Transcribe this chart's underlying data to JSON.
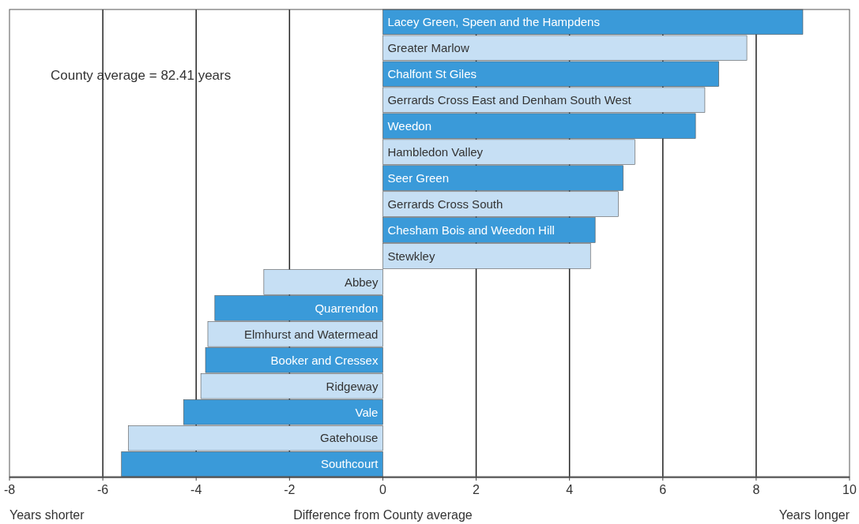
{
  "chart_data": {
    "type": "bar",
    "orientation": "horizontal",
    "xlabel": "Difference from County average",
    "categories": [
      "Lacey Green, Speen and the Hampdens",
      "Greater Marlow",
      "Chalfont St Giles",
      "Gerrards Cross East and Denham South West",
      "Weedon",
      "Hambledon Valley",
      "Seer Green",
      "Gerrards Cross South",
      "Chesham Bois and Weedon Hill",
      "Stewkley",
      "Abbey",
      "Quarrendon",
      "Elmhurst and Watermead",
      "Booker and Cressex",
      "Ridgeway",
      "Vale",
      "Gatehouse",
      "Southcourt"
    ],
    "values": [
      9.0,
      7.8,
      7.2,
      6.9,
      6.7,
      5.4,
      5.15,
      5.05,
      4.55,
      4.45,
      -2.55,
      -3.6,
      -3.75,
      -3.8,
      -3.9,
      -4.27,
      -5.45,
      -5.6
    ],
    "colors": [
      "#3a9ad9",
      "#c6dff4",
      "#3a9ad9",
      "#c6dff4",
      "#3a9ad9",
      "#c6dff4",
      "#3a9ad9",
      "#c6dff4",
      "#3a9ad9",
      "#c6dff4",
      "#c6dff4",
      "#3a9ad9",
      "#c6dff4",
      "#3a9ad9",
      "#c6dff4",
      "#3a9ad9",
      "#c6dff4",
      "#3a9ad9"
    ],
    "xlim": [
      -8,
      10
    ],
    "xticks": [
      -8,
      -6,
      -4,
      -2,
      0,
      2,
      4,
      6,
      8,
      10
    ],
    "grid": "x",
    "annotations": [
      "County average = 82.41 years",
      "Years shorter",
      "Years longer"
    ]
  }
}
